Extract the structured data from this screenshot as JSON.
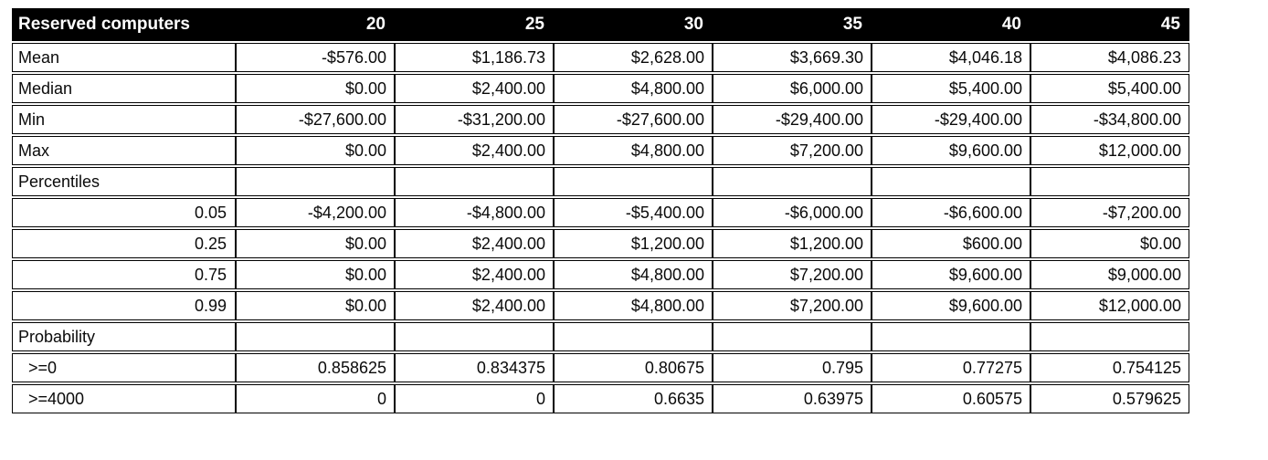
{
  "table": {
    "header": {
      "label": "Reserved computers",
      "columns": [
        "20",
        "25",
        "30",
        "35",
        "40",
        "45"
      ]
    },
    "rows": [
      {
        "label": "Mean",
        "kind": "stat",
        "values": [
          "-$576.00",
          "$1,186.73",
          "$2,628.00",
          "$3,669.30",
          "$4,046.18",
          "$4,086.23"
        ]
      },
      {
        "label": "Median",
        "kind": "stat",
        "values": [
          "$0.00",
          "$2,400.00",
          "$4,800.00",
          "$6,000.00",
          "$5,400.00",
          "$5,400.00"
        ]
      },
      {
        "label": "Min",
        "kind": "stat",
        "values": [
          "-$27,600.00",
          "-$31,200.00",
          "-$27,600.00",
          "-$29,400.00",
          "-$29,400.00",
          "-$34,800.00"
        ]
      },
      {
        "label": "Max",
        "kind": "stat",
        "values": [
          "$0.00",
          "$2,400.00",
          "$4,800.00",
          "$7,200.00",
          "$9,600.00",
          "$12,000.00"
        ]
      },
      {
        "label": "Percentiles",
        "kind": "section",
        "values": [
          "",
          "",
          "",
          "",
          "",
          ""
        ]
      },
      {
        "label": "0.05",
        "kind": "percentile",
        "values": [
          "-$4,200.00",
          "-$4,800.00",
          "-$5,400.00",
          "-$6,000.00",
          "-$6,600.00",
          "-$7,200.00"
        ]
      },
      {
        "label": "0.25",
        "kind": "percentile",
        "values": [
          "$0.00",
          "$2,400.00",
          "$1,200.00",
          "$1,200.00",
          "$600.00",
          "$0.00"
        ]
      },
      {
        "label": "0.75",
        "kind": "percentile",
        "values": [
          "$0.00",
          "$2,400.00",
          "$4,800.00",
          "$7,200.00",
          "$9,600.00",
          "$9,000.00"
        ]
      },
      {
        "label": "0.99",
        "kind": "percentile",
        "values": [
          "$0.00",
          "$2,400.00",
          "$4,800.00",
          "$7,200.00",
          "$9,600.00",
          "$12,000.00"
        ]
      },
      {
        "label": "Probability",
        "kind": "section",
        "values": [
          "",
          "",
          "",
          "",
          "",
          ""
        ]
      },
      {
        "label": ">=0",
        "kind": "probability",
        "values": [
          "0.858625",
          "0.834375",
          "0.80675",
          "0.795",
          "0.77275",
          "0.754125"
        ]
      },
      {
        "label": ">=4000",
        "kind": "probability",
        "values": [
          "0",
          "0",
          "0.6635",
          "0.63975",
          "0.60575",
          "0.579625"
        ]
      }
    ],
    "colors": {
      "header_bg": "#000000",
      "header_text": "#ffffff",
      "border": "#000000",
      "cell_text": "#0a0a0a"
    }
  }
}
